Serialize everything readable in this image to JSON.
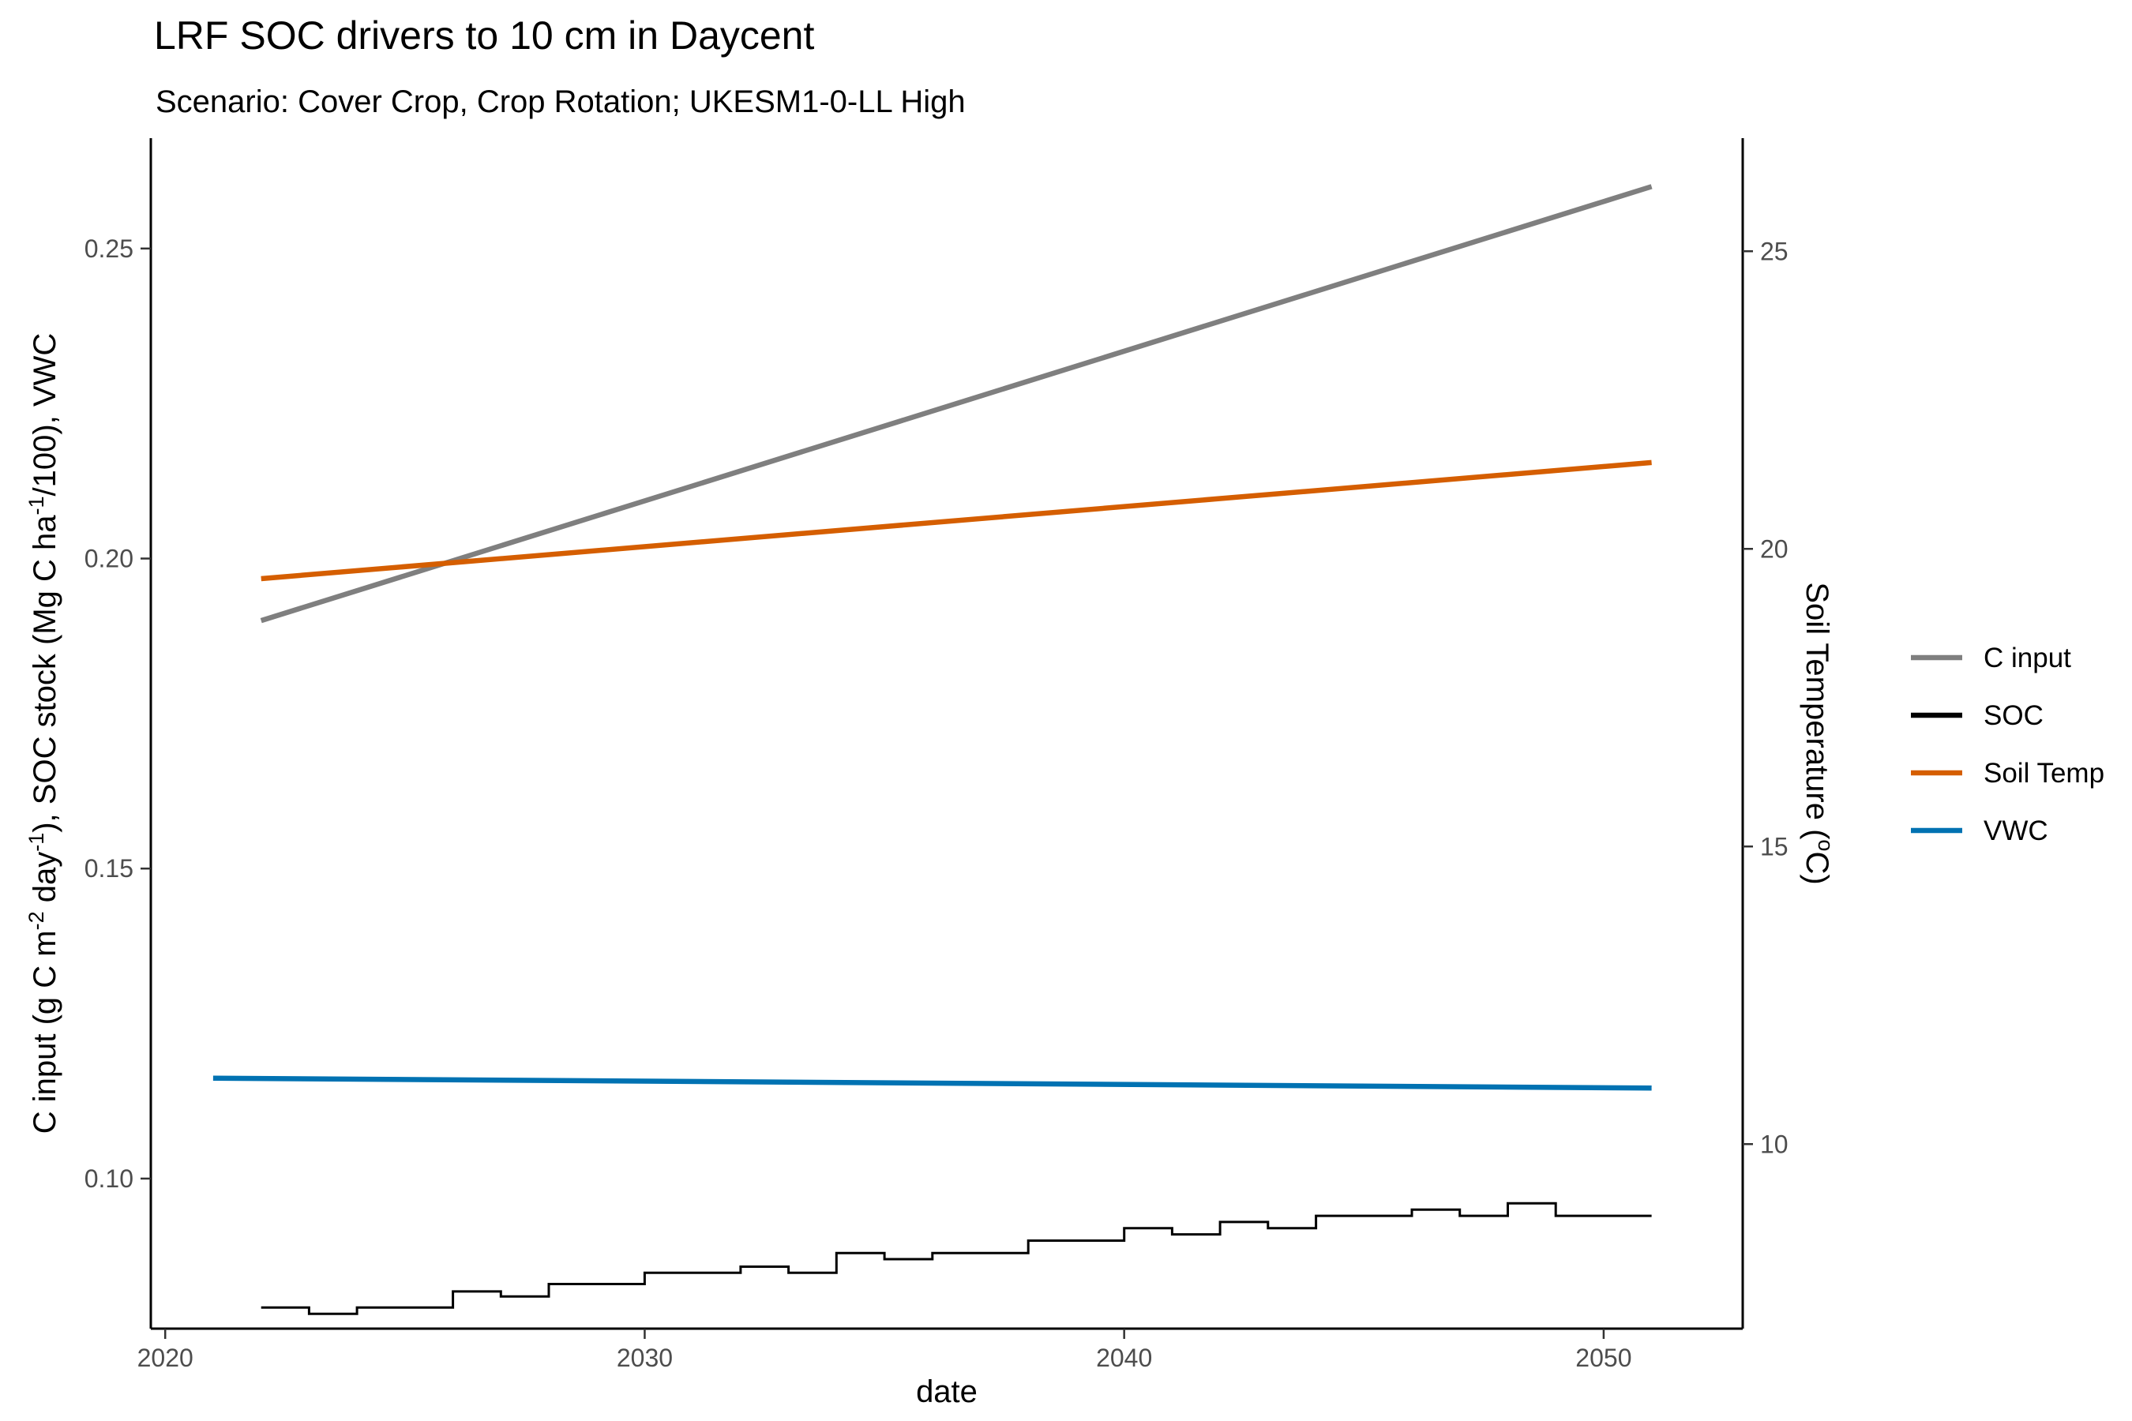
{
  "chart_data": {
    "type": "line",
    "title": "LRF SOC drivers to 10 cm in Daycent",
    "subtitle": "Scenario: Cover Crop, Crop Rotation; UKESM1-0-LL High",
    "xlabel": "date",
    "ylabel_left_parts": [
      "C input (g C m",
      "-2",
      " day",
      "-1",
      "), SOC stock (Mg C ha",
      "-1",
      "/100), VWC"
    ],
    "ylabel_right_parts": [
      "Soil Temperature (",
      "o",
      "C)"
    ],
    "x_ticks": [
      2020,
      2030,
      2040,
      2050
    ],
    "xlim": [
      2019.7,
      2052.9
    ],
    "y_left_ticks": [
      "0.10",
      "0.15",
      "0.20",
      "0.25"
    ],
    "y_left_tick_values": [
      0.1,
      0.15,
      0.2,
      0.25
    ],
    "ylim_left": [
      0.0758,
      0.2678
    ],
    "y_right_ticks": [
      "10",
      "15",
      "20",
      "25"
    ],
    "y_right_tick_values": [
      10,
      15,
      20,
      25
    ],
    "ylim_right": [
      6.9,
      26.9
    ],
    "grid": false,
    "legend_position": "right",
    "series": [
      {
        "name": "C input",
        "color": "#7f7f7f",
        "axis": "left",
        "step": false,
        "x": [
          2022,
          2051
        ],
        "y": [
          0.19,
          0.26
        ]
      },
      {
        "name": "SOC",
        "color": "#000000",
        "axis": "left",
        "step": true,
        "x": [
          2022,
          2023,
          2024,
          2025,
          2026,
          2027,
          2028,
          2029,
          2030,
          2031,
          2032,
          2033,
          2034,
          2035,
          2036,
          2037,
          2038,
          2039,
          2040,
          2041,
          2042,
          2043,
          2044,
          2045,
          2046,
          2047,
          2048,
          2049,
          2050
        ],
        "y": [
          0.0792,
          0.0782,
          0.0792,
          0.0792,
          0.0818,
          0.081,
          0.083,
          0.083,
          0.0848,
          0.0848,
          0.0858,
          0.0848,
          0.088,
          0.087,
          0.088,
          0.088,
          0.09,
          0.09,
          0.092,
          0.091,
          0.093,
          0.092,
          0.094,
          0.094,
          0.095,
          0.094,
          0.096,
          0.094,
          0.094
        ]
      },
      {
        "name": "Soil Temp",
        "color": "#d55e00",
        "axis": "right",
        "step": false,
        "x": [
          2022,
          2051
        ],
        "y": [
          19.5,
          21.45
        ]
      },
      {
        "name": "VWC",
        "color": "#0072b2",
        "axis": "left",
        "step": false,
        "x": [
          2021,
          2051
        ],
        "y": [
          0.1162,
          0.1146
        ]
      }
    ]
  }
}
